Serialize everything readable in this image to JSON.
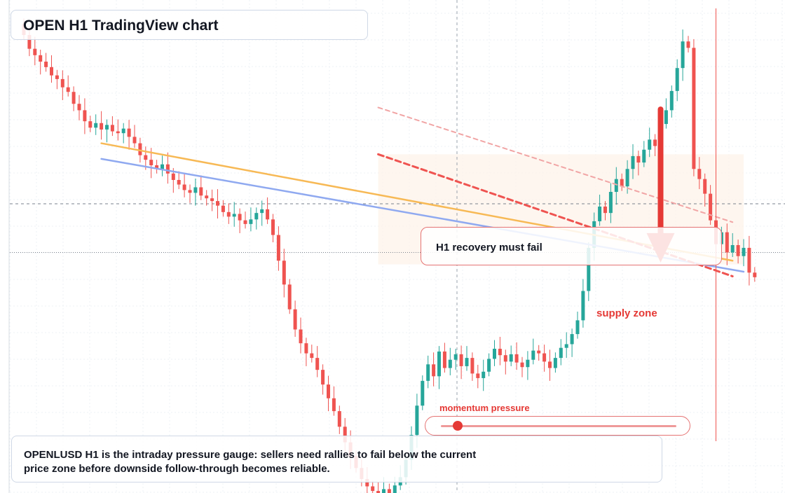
{
  "title": "OPEN H1 TradingView chart",
  "callout": {
    "text": "H1 recovery must fail"
  },
  "supply_label": "supply zone",
  "momentum": {
    "label": "momentum pressure",
    "level": 0.07
  },
  "caption": "OPENLUSD H1 is the intraday pressure gauge: sellers need rallies to fail below the current price zone before downside follow-through becomes reliable.",
  "colors": {
    "bull": "#26a69a",
    "bear": "#ef5350",
    "accent": "#e53935",
    "trend_orange": "#f7b955",
    "trend_blue": "#8fa9f0"
  },
  "chart_data": {
    "type": "candlestick",
    "timeframe": "H1",
    "direction_hint": "bearish below supply zone",
    "series": [
      {
        "name": "OPENLUSD",
        "closes": [
          100,
          98.5,
          97.8,
          97.1,
          96.5,
          95.6,
          95.2,
          94.3,
          93.8,
          92.5,
          91.8,
          90.6,
          89.9,
          90.4,
          89.7,
          90.2,
          89.5,
          89.3,
          89.8,
          88.9,
          88.2,
          86.9,
          86.4,
          85.8,
          85.4,
          85.9,
          84.9,
          84.2,
          83.7,
          83.1,
          82.8,
          83.4,
          82.5,
          82.2,
          81.9,
          81.4,
          80.7,
          80.2,
          80.5,
          79.8,
          79.4,
          79.9,
          80.6,
          81.0,
          79.9,
          78.2,
          75.4,
          72.8,
          70.1,
          67.9,
          66.4,
          65.3,
          64.8,
          63.5,
          61.9,
          60.4,
          59.0,
          57.3,
          55.6,
          54.1,
          52.8,
          51.6,
          50.8,
          50.3,
          49.9,
          50.5,
          49.7,
          50.9,
          51.8,
          53.7,
          56.4,
          59.6,
          62.3,
          64.1,
          62.8,
          65.5,
          63.7,
          64.6,
          65.2,
          63.9,
          64.8,
          63.1,
          62.6,
          63.3,
          64.7,
          65.8,
          65.1,
          64.4,
          65.2,
          64.3,
          63.8,
          64.6,
          65.6,
          65.3,
          64.4,
          63.7,
          64.8,
          65.9,
          66.3,
          67.4,
          68.9,
          72.1,
          76.8,
          79.7,
          81.3,
          80.6,
          82.9,
          84.3,
          83.5,
          85.4,
          86.8,
          86.1,
          87.5,
          88.6,
          87.9,
          90.3,
          91.8,
          93.9,
          96.4,
          99.3,
          98.6,
          85.4,
          84.3,
          82.7,
          79.8,
          77.2,
          78.5,
          76.3,
          77.1,
          75.9,
          76.8,
          74.1,
          73.6
        ]
      },
      {
        "name": "trendline (orange)",
        "from": [
          14,
          88.2
        ],
        "to": [
          128,
          75.4
        ]
      },
      {
        "name": "trendline (blue)",
        "from": [
          14,
          86.5
        ],
        "to": [
          130,
          74.2
        ]
      },
      {
        "name": "resistance (red dashed, upper)",
        "from": [
          64,
          92.1
        ],
        "to": [
          128,
          79.6
        ]
      },
      {
        "name": "resistance (red dashed, lower)",
        "from": [
          64,
          87.0
        ],
        "to": [
          128,
          73.7
        ]
      }
    ],
    "supply_zone": {
      "from_bar": 64,
      "to_bar": 130,
      "top": 87.0,
      "bottom": 75.0
    },
    "horizontal_levels": [
      81.6,
      76.3
    ],
    "projection": {
      "from_bar": 115,
      "from_price": 91.9,
      "to_price": 75.2
    },
    "grid": true
  }
}
